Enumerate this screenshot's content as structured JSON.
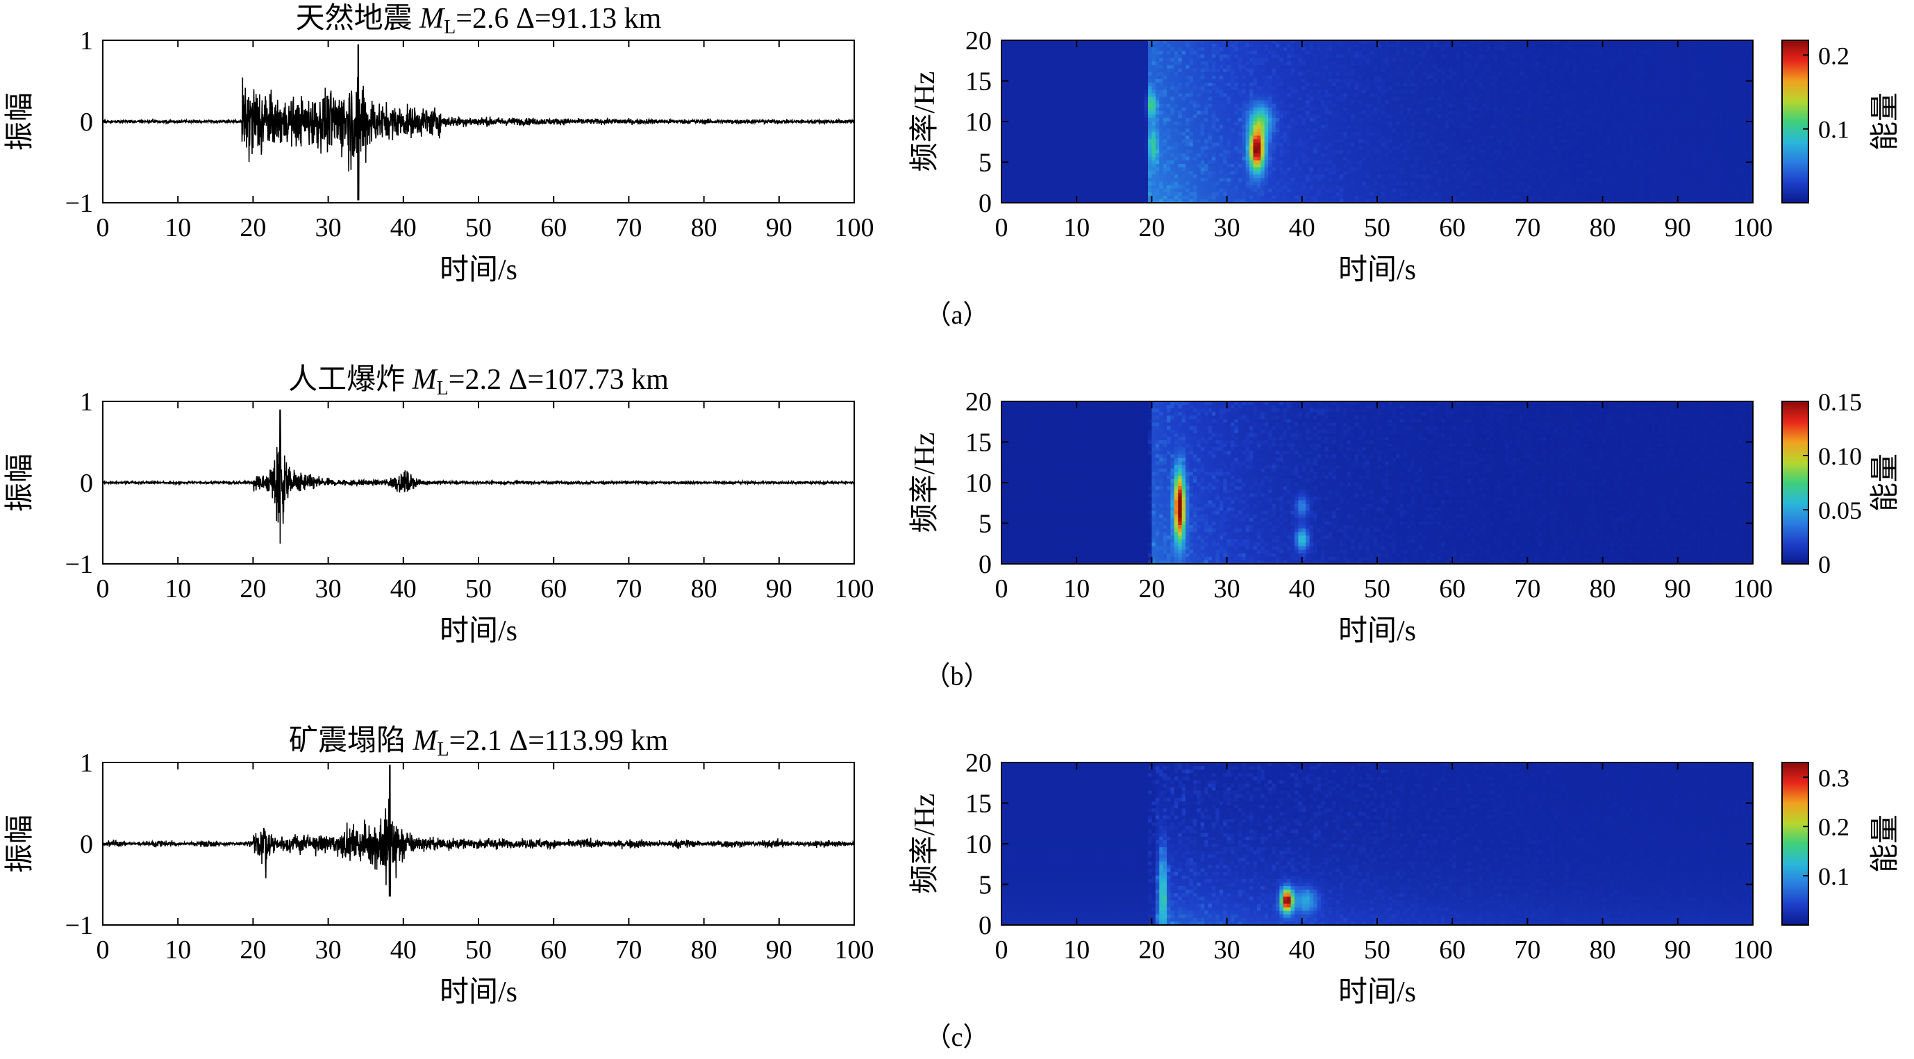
{
  "colors": {
    "axis": "#000000",
    "trace": "#000000",
    "cmap": [
      "#0a1a8f",
      "#1d3fc9",
      "#2a7de0",
      "#2ab8d8",
      "#3fd07a",
      "#b8d62e",
      "#f0a020",
      "#e8251a",
      "#8a0a0a"
    ],
    "background_map": "#202a6e"
  },
  "shared": {
    "waveform_xlabel": "时间/s",
    "waveform_ylabel": "振幅",
    "spec_xlabel": "时间/s",
    "spec_ylabel": "频率/Hz",
    "colorbar_label": "能量"
  },
  "rows": [
    {
      "caption": "（a）",
      "title_prefix": "天然地震 ",
      "title_sym": "M",
      "title_sub": "L",
      "title_rest": "=2.6 Δ=91.13 km",
      "cbar_ticks": [
        "0.1",
        "0.2"
      ]
    },
    {
      "caption": "（b）",
      "title_prefix": "人工爆炸 ",
      "title_sym": "M",
      "title_sub": "L",
      "title_rest": "=2.2 Δ=107.73 km",
      "cbar_ticks": [
        "0",
        "0.05",
        "0.10",
        "0.15"
      ]
    },
    {
      "caption": "（c）",
      "title_prefix": "矿震塌陷 ",
      "title_sym": "M",
      "title_sub": "L",
      "title_rest": "=2.1 Δ=113.99 km",
      "cbar_ticks": [
        "0.1",
        "0.2",
        "0.3"
      ]
    }
  ],
  "chart_data": [
    {
      "type": "line",
      "panel": "a-waveform",
      "xlabel": "时间/s",
      "ylabel": "振幅",
      "xlim": [
        0,
        100
      ],
      "ylim": [
        -1,
        1
      ],
      "xticks": [
        "0",
        "10",
        "20",
        "30",
        "40",
        "50",
        "60",
        "70",
        "80",
        "90",
        "100"
      ],
      "yticks": [
        "1",
        "0",
        "−1"
      ],
      "onset_s": 19,
      "peak_s": 34,
      "peak_amp": 0.95,
      "min_amp": -0.97
    },
    {
      "type": "heatmap",
      "panel": "a-spectrogram",
      "xlabel": "时间/s",
      "ylabel": "频率/Hz",
      "xlim": [
        0,
        100
      ],
      "ylim": [
        0,
        20
      ],
      "xticks": [
        "0",
        "10",
        "20",
        "30",
        "40",
        "50",
        "60",
        "70",
        "80",
        "90",
        "100"
      ],
      "yticks": [
        "20",
        "15",
        "10",
        "5",
        "0"
      ],
      "colorbar": {
        "label": "能量",
        "range": [
          0,
          0.22
        ],
        "ticks": [
          0.1,
          0.2
        ]
      },
      "hotspots": [
        {
          "t": 34,
          "f": 6,
          "energy": 0.22
        },
        {
          "t": 20,
          "f": 12,
          "energy": 0.08
        }
      ]
    },
    {
      "type": "line",
      "panel": "b-waveform",
      "xlabel": "时间/s",
      "ylabel": "振幅",
      "xlim": [
        0,
        100
      ],
      "ylim": [
        -1,
        1
      ],
      "xticks": [
        "0",
        "10",
        "20",
        "30",
        "40",
        "50",
        "60",
        "70",
        "80",
        "90",
        "100"
      ],
      "yticks": [
        "1",
        "0",
        "−1"
      ],
      "onset_s": 20,
      "peak_s": 23.5,
      "peak_amp": 0.9,
      "min_amp": -0.75,
      "second_arrival_s": 40
    },
    {
      "type": "heatmap",
      "panel": "b-spectrogram",
      "xlabel": "时间/s",
      "ylabel": "频率/Hz",
      "xlim": [
        0,
        100
      ],
      "ylim": [
        0,
        20
      ],
      "xticks": [
        "0",
        "10",
        "20",
        "30",
        "40",
        "50",
        "60",
        "70",
        "80",
        "90",
        "100"
      ],
      "yticks": [
        "20",
        "15",
        "10",
        "5",
        "0"
      ],
      "colorbar": {
        "label": "能量",
        "range": [
          0,
          0.15
        ],
        "ticks": [
          0,
          0.05,
          0.1,
          0.15
        ]
      },
      "hotspots": [
        {
          "t": 23.5,
          "f": 7,
          "energy": 0.15
        },
        {
          "t": 40,
          "f": 3,
          "energy": 0.06
        }
      ]
    },
    {
      "type": "line",
      "panel": "c-waveform",
      "xlabel": "时间/s",
      "ylabel": "振幅",
      "xlim": [
        0,
        100
      ],
      "ylim": [
        -1,
        1
      ],
      "xticks": [
        "0",
        "10",
        "20",
        "30",
        "40",
        "50",
        "60",
        "70",
        "80",
        "90",
        "100"
      ],
      "yticks": [
        "1",
        "0",
        "−1"
      ],
      "onset_s": 21,
      "peak_s": 38,
      "peak_amp": 0.97,
      "min_amp": -0.65
    },
    {
      "type": "heatmap",
      "panel": "c-spectrogram",
      "xlabel": "时间/s",
      "ylabel": "频率/Hz",
      "xlim": [
        0,
        100
      ],
      "ylim": [
        0,
        20
      ],
      "xticks": [
        "0",
        "10",
        "20",
        "30",
        "40",
        "50",
        "60",
        "70",
        "80",
        "90",
        "100"
      ],
      "yticks": [
        "20",
        "15",
        "10",
        "5",
        "0"
      ],
      "colorbar": {
        "label": "能量",
        "range": [
          0,
          0.33
        ],
        "ticks": [
          0.1,
          0.2,
          0.3
        ]
      },
      "hotspots": [
        {
          "t": 38,
          "f": 3,
          "energy": 0.33
        }
      ]
    }
  ]
}
